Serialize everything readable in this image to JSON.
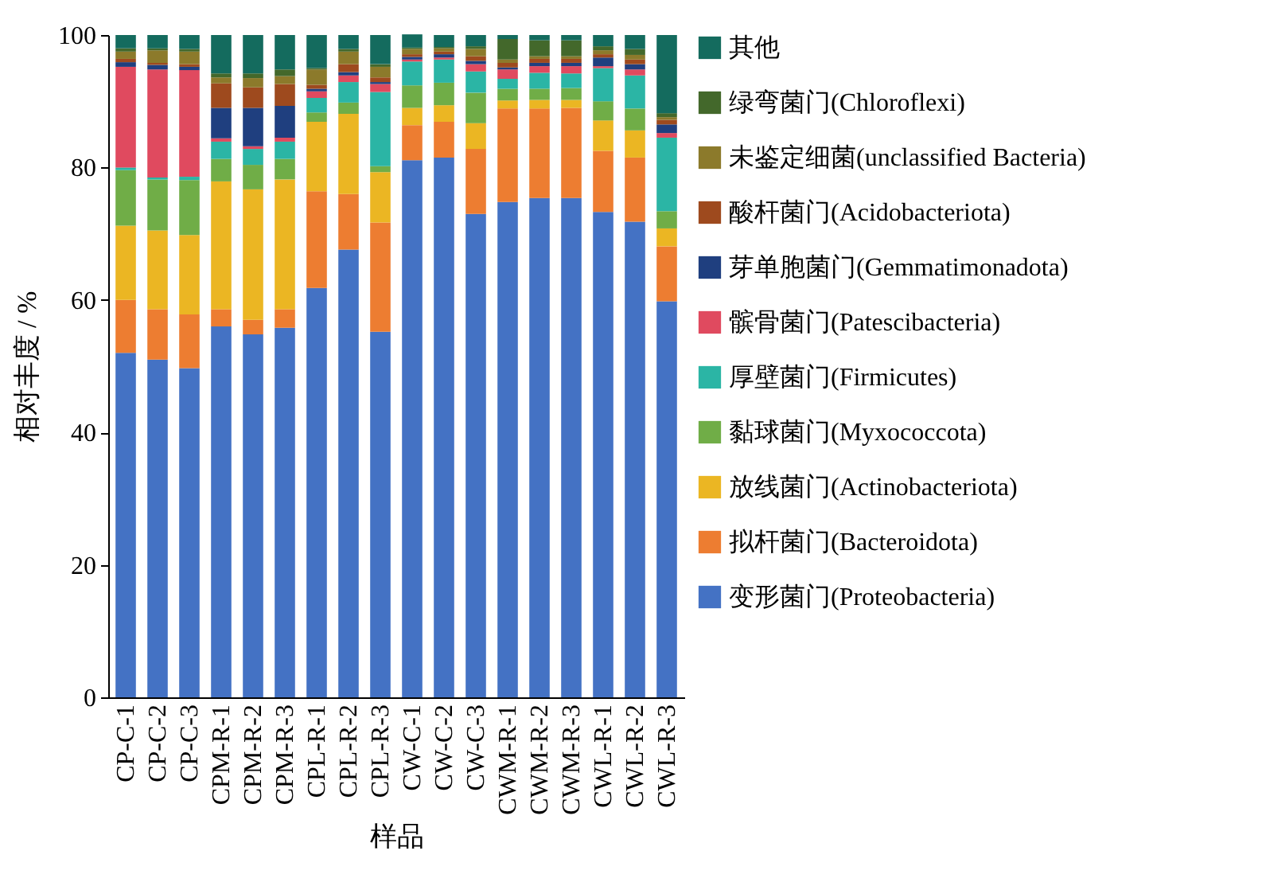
{
  "chart_data": {
    "type": "bar",
    "stacked": true,
    "xlabel": "样品",
    "ylabel": "相对丰度 / %",
    "ylim": [
      0,
      100
    ],
    "yticks": [
      0,
      20,
      40,
      60,
      80,
      100
    ],
    "grid": false,
    "legend": "right",
    "categories": [
      "CP-C-1",
      "CP-C-2",
      "CP-C-3",
      "CPM-R-1",
      "CPM-R-2",
      "CPM-R-3",
      "CPL-R-1",
      "CPL-R-2",
      "CPL-R-3",
      "CW-C-1",
      "CW-C-2",
      "CW-C-3",
      "CWM-R-1",
      "CWM-R-2",
      "CWM-R-3",
      "CWL-R-1",
      "CWL-R-2",
      "CWL-R-3"
    ],
    "series": [
      {
        "name": "变形菌门(Proteobacteria)",
        "color": "#4472c4",
        "values": [
          52.0,
          51.0,
          49.7,
          56.0,
          54.8,
          55.8,
          61.8,
          67.6,
          55.2,
          81.1,
          81.5,
          73.0,
          74.8,
          75.4,
          75.4,
          73.3,
          71.8,
          59.8
        ]
      },
      {
        "name": "拟杆菌门(Bacteroidota)",
        "color": "#ed7d31",
        "values": [
          8.0,
          7.6,
          8.1,
          2.6,
          2.2,
          2.8,
          14.6,
          8.4,
          16.5,
          5.3,
          5.4,
          9.8,
          14.1,
          13.5,
          13.6,
          9.2,
          9.7,
          8.3
        ]
      },
      {
        "name": "放线菌门(Actinobacteriota)",
        "color": "#ebb623",
        "values": [
          11.2,
          11.9,
          12.0,
          19.3,
          19.7,
          19.6,
          10.5,
          12.1,
          7.6,
          2.6,
          2.5,
          3.9,
          1.2,
          1.3,
          1.2,
          4.6,
          4.1,
          2.7
        ]
      },
      {
        "name": "黏球菌门(Myxococcota)",
        "color": "#70ad47",
        "values": [
          8.4,
          7.7,
          8.3,
          3.4,
          3.7,
          3.1,
          1.4,
          1.7,
          0.9,
          3.4,
          3.4,
          4.6,
          1.8,
          1.7,
          1.8,
          2.9,
          3.3,
          2.6
        ]
      },
      {
        "name": "厚壁菌门(Firmicutes)",
        "color": "#2bb5a5",
        "values": [
          0.4,
          0.3,
          0.5,
          2.6,
          2.4,
          2.6,
          2.2,
          3.1,
          11.2,
          3.6,
          3.5,
          3.2,
          1.5,
          2.4,
          2.2,
          5.0,
          5.0,
          11.1
        ]
      },
      {
        "name": "髌骨菌门(Patescibacteria)",
        "color": "#e04a5f",
        "values": [
          15.2,
          16.3,
          16.1,
          0.5,
          0.4,
          0.6,
          1.0,
          1.0,
          1.2,
          0.3,
          0.3,
          1.1,
          1.4,
          1.0,
          1.1,
          0.3,
          0.9,
          0.7
        ]
      },
      {
        "name": "芽单胞菌门(Gemmatimonadota)",
        "color": "#1f3f7f",
        "values": [
          0.7,
          0.7,
          0.5,
          4.6,
          5.8,
          4.8,
          0.4,
          0.5,
          0.3,
          0.4,
          0.5,
          0.5,
          0.3,
          0.5,
          0.5,
          1.3,
          0.8,
          1.3
        ]
      },
      {
        "name": "酸杆菌门(Acidobacteriota)",
        "color": "#9e4a1e",
        "values": [
          0.5,
          0.3,
          0.4,
          3.7,
          3.1,
          3.3,
          0.6,
          1.2,
          0.7,
          0.4,
          0.4,
          0.7,
          0.7,
          0.6,
          0.6,
          0.5,
          0.7,
          0.7
        ]
      },
      {
        "name": "未鉴定细菌(unclassified Bacteria)",
        "color": "#8c7a2b",
        "values": [
          1.1,
          1.9,
          1.9,
          0.9,
          1.4,
          1.2,
          2.3,
          1.9,
          1.6,
          0.8,
          0.5,
          1.1,
          0.5,
          0.4,
          0.4,
          0.6,
          0.7,
          0.4
        ]
      },
      {
        "name": "绿弯菌门(Chloroflexi)",
        "color": "#43682b",
        "values": [
          0.5,
          0.3,
          0.4,
          0.6,
          0.7,
          1.0,
          0.2,
          0.4,
          0.4,
          0.2,
          0.2,
          0.4,
          3.1,
          2.4,
          2.4,
          0.6,
          0.9,
          0.6
        ]
      },
      {
        "name": "其他",
        "color": "#146b5e",
        "values": [
          2.0,
          2.0,
          2.1,
          5.8,
          5.8,
          5.2,
          5.0,
          2.1,
          4.4,
          2.0,
          1.8,
          1.7,
          0.6,
          0.8,
          0.8,
          1.7,
          2.1,
          11.8
        ]
      }
    ]
  }
}
